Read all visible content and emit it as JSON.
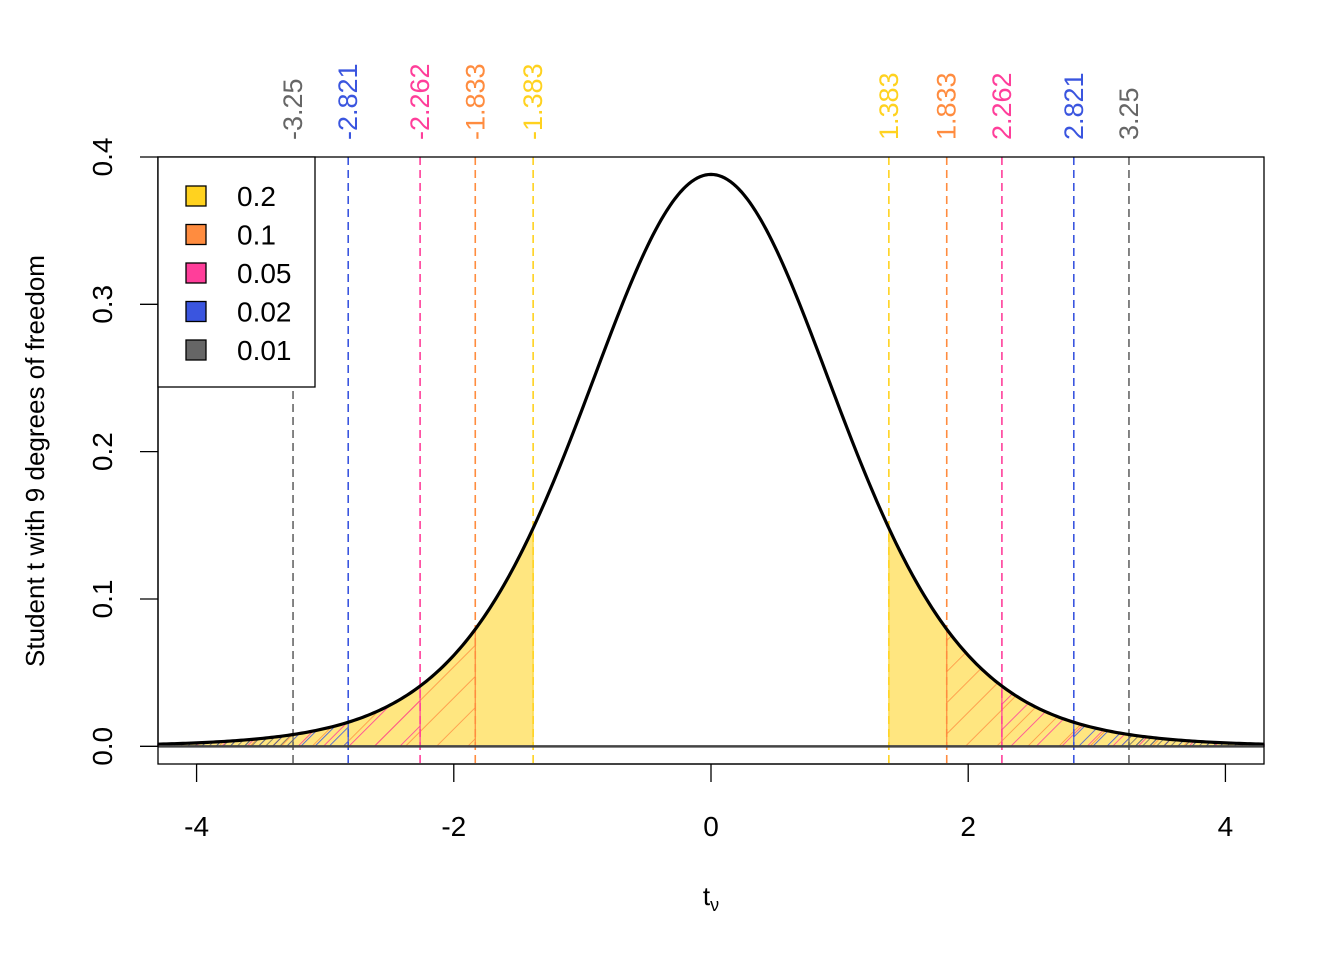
{
  "chart_data": {
    "type": "area",
    "distribution": "Student t",
    "degrees_of_freedom": 9,
    "xlabel_main": "t",
    "xlabel_sub": "ν",
    "ylabel": "Student t with 9 degrees of freedom",
    "xlim": [
      -4.3,
      4.3
    ],
    "ylim": [
      -0.012,
      0.4
    ],
    "x_ticks": [
      -4,
      -2,
      0,
      2,
      4
    ],
    "x_tick_labels": [
      "-4",
      "-2",
      "0",
      "2",
      "4"
    ],
    "y_ticks": [
      0.0,
      0.1,
      0.2,
      0.3,
      0.4
    ],
    "y_tick_labels": [
      "0.0",
      "0.1",
      "0.2",
      "0.3",
      "0.4"
    ],
    "grid": false,
    "legend_position": "top-left",
    "legend": [
      {
        "label": "0.2",
        "color": "#FFD21F"
      },
      {
        "label": "0.1",
        "color": "#FF8C3F"
      },
      {
        "label": "0.05",
        "color": "#FF3E9A"
      },
      {
        "label": "0.02",
        "color": "#3A55DF"
      },
      {
        "label": "0.01",
        "color": "#666666"
      }
    ],
    "critical_values": [
      {
        "alpha": "0.2",
        "value": 1.383,
        "label_neg": "-1.383",
        "label_pos": "1.383",
        "color": "#FFD21F"
      },
      {
        "alpha": "0.1",
        "value": 1.833,
        "label_neg": "-1.833",
        "label_pos": "1.833",
        "color": "#FF8C3F"
      },
      {
        "alpha": "0.05",
        "value": 2.262,
        "label_neg": "-2.262",
        "label_pos": "2.262",
        "color": "#FF3E9A"
      },
      {
        "alpha": "0.02",
        "value": 2.821,
        "label_neg": "-2.821",
        "label_pos": "2.821",
        "color": "#3A55DF"
      },
      {
        "alpha": "0.01",
        "value": 3.25,
        "label_neg": "-3.25",
        "label_pos": "3.25",
        "color": "#666666"
      }
    ],
    "tail_fill_color": "#FFE680"
  }
}
